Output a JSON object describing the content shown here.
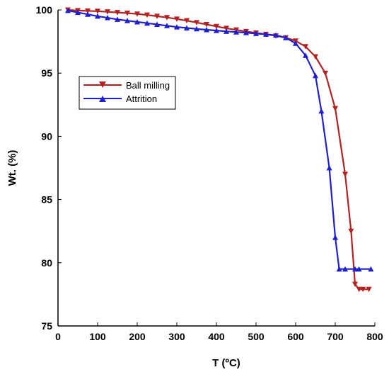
{
  "chart_data": {
    "type": "line",
    "title": "",
    "xlabel": "T (ºC)",
    "ylabel": "Wt. (%)",
    "xlim": [
      0,
      800
    ],
    "ylim": [
      75,
      100
    ],
    "x_ticks": [
      0,
      100,
      200,
      300,
      400,
      500,
      600,
      700,
      800
    ],
    "y_ticks": [
      75,
      80,
      85,
      90,
      95,
      100
    ],
    "grid": false,
    "legend_position": "upper-left inside",
    "series": [
      {
        "name": "Ball milling",
        "color": "#B22222",
        "marker": "triangle-down",
        "points": [
          [
            25,
            100.0
          ],
          [
            50,
            99.95
          ],
          [
            75,
            99.92
          ],
          [
            100,
            99.9
          ],
          [
            125,
            99.85
          ],
          [
            150,
            99.8
          ],
          [
            175,
            99.75
          ],
          [
            200,
            99.68
          ],
          [
            225,
            99.6
          ],
          [
            250,
            99.5
          ],
          [
            275,
            99.4
          ],
          [
            300,
            99.28
          ],
          [
            325,
            99.15
          ],
          [
            350,
            99.0
          ],
          [
            375,
            98.85
          ],
          [
            400,
            98.7
          ],
          [
            425,
            98.55
          ],
          [
            450,
            98.42
          ],
          [
            475,
            98.3
          ],
          [
            500,
            98.18
          ],
          [
            525,
            98.07
          ],
          [
            550,
            97.95
          ],
          [
            575,
            97.8
          ],
          [
            600,
            97.55
          ],
          [
            625,
            97.1
          ],
          [
            650,
            96.3
          ],
          [
            675,
            95.0
          ],
          [
            700,
            92.2
          ],
          [
            725,
            87.0
          ],
          [
            740,
            82.5
          ],
          [
            750,
            78.3
          ],
          [
            760,
            77.9
          ],
          [
            770,
            77.9
          ],
          [
            785,
            77.9
          ]
        ]
      },
      {
        "name": "Attrition",
        "color": "#1F1FCC",
        "marker": "triangle-up",
        "points": [
          [
            25,
            99.95
          ],
          [
            50,
            99.8
          ],
          [
            75,
            99.65
          ],
          [
            100,
            99.5
          ],
          [
            125,
            99.38
          ],
          [
            150,
            99.25
          ],
          [
            175,
            99.15
          ],
          [
            200,
            99.05
          ],
          [
            225,
            98.95
          ],
          [
            250,
            98.85
          ],
          [
            275,
            98.75
          ],
          [
            300,
            98.65
          ],
          [
            325,
            98.57
          ],
          [
            350,
            98.5
          ],
          [
            375,
            98.43
          ],
          [
            400,
            98.37
          ],
          [
            425,
            98.3
          ],
          [
            450,
            98.25
          ],
          [
            475,
            98.2
          ],
          [
            500,
            98.13
          ],
          [
            525,
            98.07
          ],
          [
            550,
            98.0
          ],
          [
            575,
            97.8
          ],
          [
            600,
            97.35
          ],
          [
            625,
            96.4
          ],
          [
            650,
            94.8
          ],
          [
            665,
            92.0
          ],
          [
            685,
            87.5
          ],
          [
            700,
            82.0
          ],
          [
            710,
            79.5
          ],
          [
            725,
            79.5
          ],
          [
            750,
            79.5
          ],
          [
            760,
            79.5
          ],
          [
            790,
            79.5
          ]
        ]
      }
    ]
  }
}
